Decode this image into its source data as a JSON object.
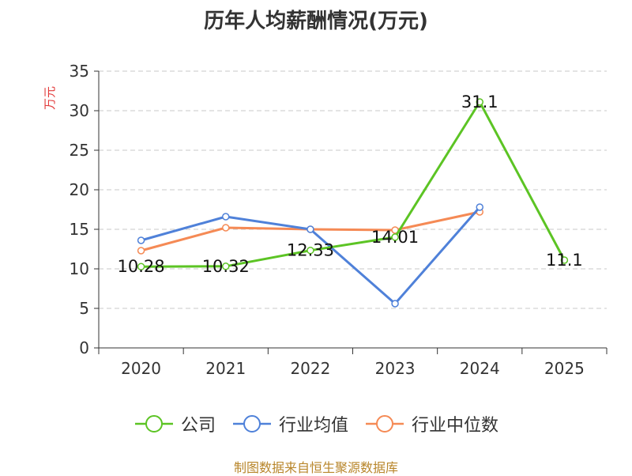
{
  "title": "历年人均薪酬情况(万元)",
  "source_note": "制图数据来自恒生聚源数据库",
  "chart_data": {
    "type": "line",
    "title": "历年人均薪酬情况(万元)",
    "xlabel": "",
    "ylabel": "万元",
    "categories": [
      "2020",
      "2021",
      "2022",
      "2023",
      "2024",
      "2025"
    ],
    "ylim": [
      0,
      35
    ],
    "yticks": [
      0,
      5,
      10,
      15,
      20,
      25,
      30,
      35
    ],
    "grid": true,
    "legend_position": "bottom",
    "series": [
      {
        "name": "公司",
        "color": "#5cc424",
        "values": [
          10.28,
          10.32,
          12.33,
          14.01,
          31.1,
          11.1
        ],
        "labels": [
          "10.28",
          "10.32",
          "12.33",
          "14.01",
          "31.1",
          "11.1"
        ]
      },
      {
        "name": "行业均值",
        "color": "#4f81d9",
        "values": [
          13.6,
          16.6,
          15.0,
          5.6,
          17.8,
          null
        ]
      },
      {
        "name": "行业中位数",
        "color": "#f58a55",
        "values": [
          12.3,
          15.2,
          15.0,
          14.9,
          17.2,
          null
        ]
      }
    ]
  }
}
